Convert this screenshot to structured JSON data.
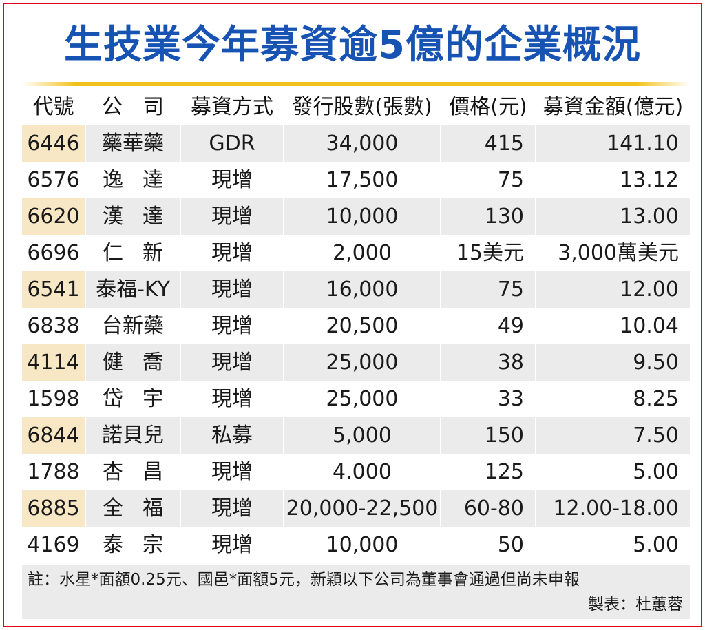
{
  "title": "生技業今年募資逾5億的企業概況",
  "colors": {
    "title": "#1753b3",
    "border": "#e0001b",
    "rule": "#f2c21c",
    "row_shade": "#ebebeb",
    "code_shade": "#f7e7c4"
  },
  "table": {
    "headers": [
      "代號",
      "公　司",
      "募資方式",
      "發行股數(張數)",
      "價格(元)",
      "募資金額(億元)"
    ],
    "rows": [
      {
        "code": "6446",
        "company": "藥華藥",
        "method": "GDR",
        "shares": "34,000",
        "price": "415",
        "amount": "141.10"
      },
      {
        "code": "6576",
        "company": "逸達",
        "method": "現增",
        "shares": "17,500",
        "price": "75",
        "amount": "13.12"
      },
      {
        "code": "6620",
        "company": "漢達",
        "method": "現增",
        "shares": "10,000",
        "price": "130",
        "amount": "13.00"
      },
      {
        "code": "6696",
        "company": "仁新",
        "method": "現增",
        "shares": "2,000",
        "price": "15美元",
        "amount": "3,000萬美元"
      },
      {
        "code": "6541",
        "company": "泰福-KY",
        "method": "現增",
        "shares": "16,000",
        "price": "75",
        "amount": "12.00"
      },
      {
        "code": "6838",
        "company": "台新藥",
        "method": "現增",
        "shares": "20,500",
        "price": "49",
        "amount": "10.04"
      },
      {
        "code": "4114",
        "company": "健喬",
        "method": "現增",
        "shares": "25,000",
        "price": "38",
        "amount": "9.50"
      },
      {
        "code": "1598",
        "company": "岱宇",
        "method": "現增",
        "shares": "25,000",
        "price": "33",
        "amount": "8.25"
      },
      {
        "code": "6844",
        "company": "諾貝兒",
        "method": "私募",
        "shares": "5,000",
        "price": "150",
        "amount": "7.50"
      },
      {
        "code": "1788",
        "company": "杏昌",
        "method": "現增",
        "shares": "4.000",
        "price": "125",
        "amount": "5.00"
      },
      {
        "code": "6885",
        "company": "全福",
        "method": "現增",
        "shares": "20,000-22,500",
        "price": "60-80",
        "amount": "12.00-18.00"
      },
      {
        "code": "4169",
        "company": "泰宗",
        "method": "現增",
        "shares": "10,000",
        "price": "50",
        "amount": "5.00"
      }
    ]
  },
  "footer": {
    "note": "註：水星*面額0.25元、國邑*面額5元，新穎以下公司為董事會通過但尚未申報",
    "maker": "製表：杜蕙蓉"
  }
}
